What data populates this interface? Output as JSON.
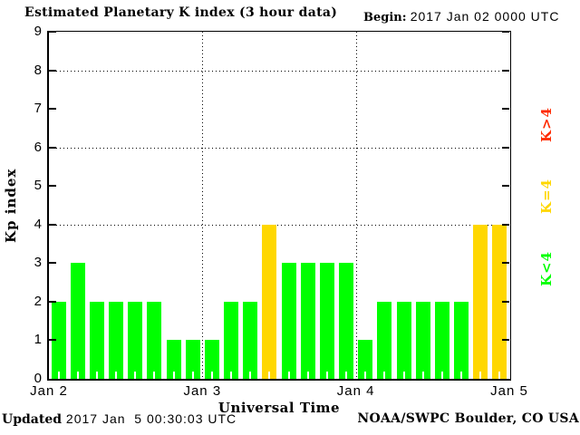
{
  "header": {
    "title": "Estimated Planetary K index (3 hour data)",
    "begin_label": "Begin:",
    "begin_value": "2017 Jan 02 0000 UTC"
  },
  "chart_data": {
    "type": "bar",
    "title": "Estimated Planetary K index (3 hour data)",
    "xlabel": "Universal Time",
    "ylabel": "Kp index",
    "ylim": [
      0,
      9
    ],
    "yticks": [
      0,
      1,
      2,
      3,
      4,
      5,
      6,
      7,
      8,
      9
    ],
    "grid_y_values": [
      4,
      6,
      8
    ],
    "grid": true,
    "bars_per_day": 8,
    "bar_interval_hours": 3,
    "day_labels": [
      "Jan 2",
      "Jan 3",
      "Jan 4",
      "Jan 5"
    ],
    "values": [
      2,
      3,
      2,
      2,
      2,
      2,
      1,
      1,
      1,
      2,
      2,
      4,
      3,
      3,
      3,
      3,
      1,
      2,
      2,
      2,
      2,
      2,
      4,
      4
    ],
    "color_rules": {
      "below_4": "#00FF00",
      "equal_4": "#FFD700",
      "above_4": "#FF2A00"
    },
    "legend_position": "right-rotated",
    "legend": [
      {
        "label": "K>4",
        "color": "#FF2A00"
      },
      {
        "label": "K=4",
        "color": "#FFD700"
      },
      {
        "label": "K<4",
        "color": "#00FF00"
      }
    ]
  },
  "footer": {
    "updated_label": "Updated",
    "updated_value": " 2017 Jan  5 00:30:03 UTC",
    "credit": "NOAA/SWPC Boulder, CO USA"
  }
}
